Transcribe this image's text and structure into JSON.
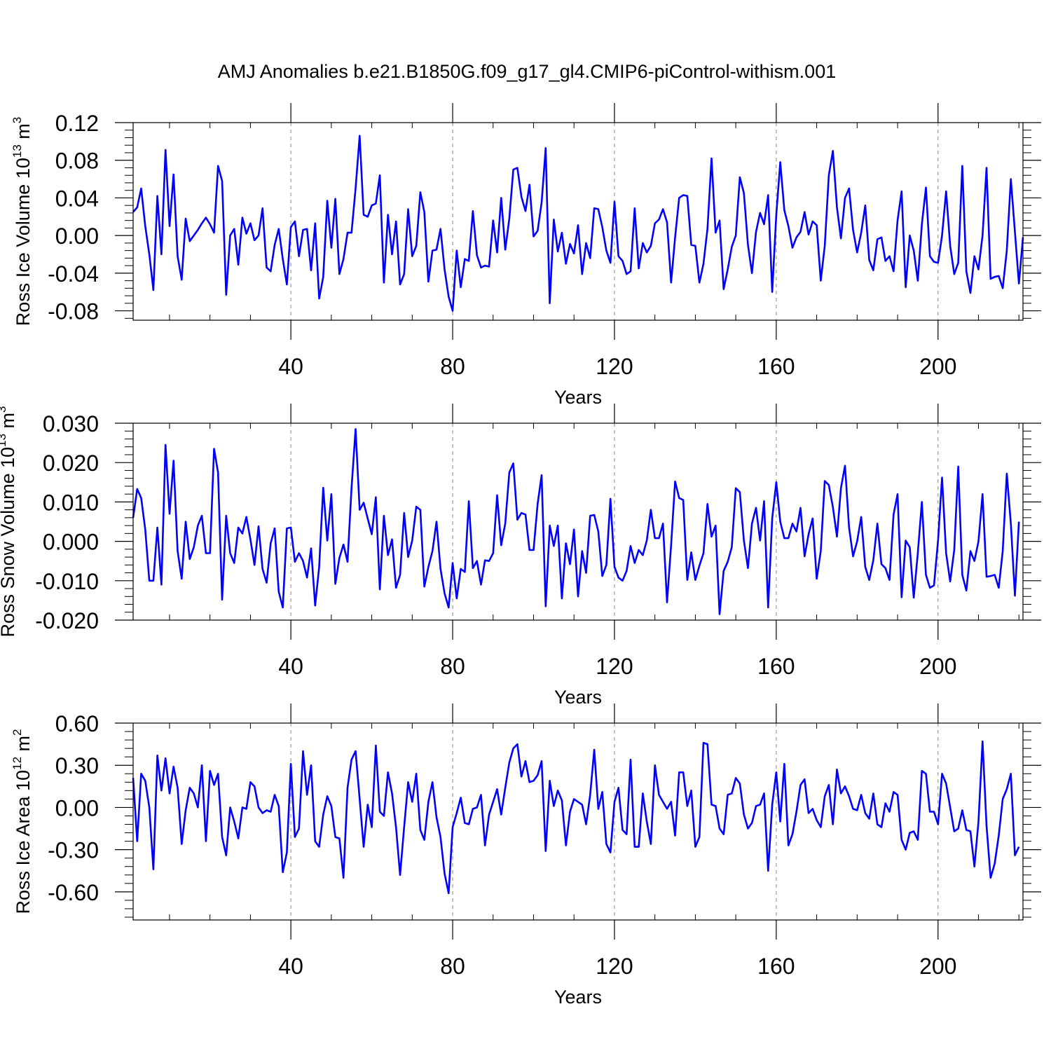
{
  "figure_title": "AMJ Anomalies b.e21.B1850G.f09_g17_gl4.CMIP6-piControl-withism.001",
  "chart_data": [
    {
      "type": "line",
      "xlabel": "Years",
      "ylabel": "Ross Ice Volume 10",
      "ylabel_exp": "13",
      "ylabel_unit": "m",
      "ylabel_unit_exp": "3",
      "xlim": [
        1,
        221
      ],
      "ylim": [
        -0.09,
        0.12
      ],
      "yticks": [
        -0.08,
        -0.04,
        0.0,
        0.04,
        0.08,
        0.12
      ],
      "ytick_labels": [
        "-0.08",
        "-0.04",
        "0.00",
        "0.04",
        "0.08",
        "0.12"
      ],
      "xticks": [
        40,
        80,
        120,
        160,
        200
      ],
      "xtick_labels": [
        "40",
        "80",
        "120",
        "160",
        "200"
      ],
      "grid": "vertical dashed at major x ticks",
      "line_color": "#0000ff",
      "x_start": 1,
      "values": [
        0.025,
        0.03,
        0.05,
        0.01,
        -0.02,
        -0.058,
        0.042,
        -0.02,
        0.091,
        0.01,
        0.065,
        -0.022,
        -0.047,
        0.018,
        -0.006,
        0.0,
        0.006,
        0.013,
        0.019,
        0.012,
        0.003,
        0.074,
        0.058,
        -0.063,
        0.0,
        0.007,
        -0.031,
        0.019,
        0.002,
        0.013,
        -0.005,
        0.0,
        0.029,
        -0.034,
        -0.038,
        -0.01,
        0.007,
        -0.025,
        -0.052,
        0.009,
        0.015,
        -0.022,
        0.006,
        0.007,
        -0.037,
        0.013,
        -0.067,
        -0.044,
        0.037,
        -0.013,
        0.039,
        -0.041,
        -0.025,
        0.003,
        0.003,
        0.05,
        0.106,
        0.022,
        0.02,
        0.032,
        0.034,
        0.064,
        -0.05,
        0.022,
        -0.02,
        0.015,
        -0.052,
        -0.041,
        0.028,
        -0.022,
        -0.011,
        0.046,
        0.025,
        -0.049,
        -0.016,
        -0.015,
        0.007,
        -0.036,
        -0.065,
        -0.08,
        -0.016,
        -0.055,
        -0.025,
        -0.027,
        0.026,
        -0.021,
        -0.034,
        -0.032,
        -0.033,
        0.016,
        -0.018,
        0.04,
        -0.015,
        0.018,
        0.07,
        0.072,
        0.041,
        0.026,
        0.054,
        -0.001,
        0.005,
        0.035,
        0.093,
        -0.072,
        0.017,
        -0.017,
        0.003,
        -0.03,
        -0.009,
        -0.019,
        0.011,
        -0.041,
        -0.008,
        -0.024,
        0.029,
        0.028,
        0.009,
        -0.016,
        -0.029,
        0.036,
        -0.022,
        -0.027,
        -0.041,
        -0.038,
        0.029,
        -0.035,
        -0.008,
        -0.018,
        -0.011,
        0.013,
        0.017,
        0.028,
        0.014,
        -0.05,
        -0.002,
        0.04,
        0.043,
        0.042,
        -0.01,
        -0.011,
        -0.05,
        -0.03,
        0.007,
        0.082,
        0.003,
        0.016,
        -0.057,
        -0.036,
        -0.012,
        0.0,
        0.062,
        0.045,
        -0.01,
        -0.04,
        0.004,
        0.024,
        0.012,
        0.043,
        -0.06,
        0.022,
        0.078,
        0.027,
        0.01,
        -0.013,
        -0.002,
        0.004,
        0.025,
        0.001,
        0.015,
        0.011,
        -0.048,
        -0.011,
        0.064,
        0.09,
        0.03,
        -0.003,
        0.04,
        0.05,
        0.006,
        -0.018,
        0.003,
        0.032,
        -0.026,
        -0.037,
        -0.004,
        -0.002,
        -0.027,
        -0.022,
        -0.038,
        0.016,
        0.047,
        -0.055,
        0.0,
        -0.016,
        -0.048,
        0.012,
        0.051,
        -0.022,
        -0.028,
        -0.029,
        0.0,
        0.047,
        -0.011,
        -0.041,
        -0.029,
        0.074,
        -0.038,
        -0.061,
        -0.022,
        -0.036,
        0.0,
        0.072,
        -0.046,
        -0.044,
        -0.043,
        -0.056,
        -0.016,
        0.06,
        0.004,
        -0.051,
        -0.002
      ]
    },
    {
      "type": "line",
      "xlabel": "Years",
      "ylabel": "Ross Snow Volume 10",
      "ylabel_exp": "13",
      "ylabel_unit": "m",
      "ylabel_unit_exp": "3",
      "xlim": [
        1,
        221
      ],
      "ylim": [
        -0.02,
        0.03
      ],
      "yticks": [
        -0.02,
        -0.01,
        0.0,
        0.01,
        0.02,
        0.03
      ],
      "ytick_labels": [
        "-0.020",
        "-0.010",
        "0.000",
        "0.010",
        "0.020",
        "0.030"
      ],
      "xticks": [
        40,
        80,
        120,
        160,
        200
      ],
      "xtick_labels": [
        "40",
        "80",
        "120",
        "160",
        "200"
      ],
      "grid": "vertical dashed at major x ticks",
      "line_color": "#0000ff",
      "x_start": 1,
      "values": [
        0.006,
        0.0133,
        0.011,
        0.003,
        -0.01,
        -0.01,
        0.0035,
        -0.011,
        0.0245,
        0.007,
        0.0205,
        -0.0025,
        -0.0095,
        0.005,
        -0.0045,
        -0.0015,
        0.004,
        0.0065,
        -0.003,
        -0.003,
        0.0235,
        0.0175,
        -0.0148,
        0.0065,
        -0.003,
        -0.0055,
        0.0035,
        0.002,
        0.0062,
        0.0005,
        -0.006,
        0.0038,
        -0.007,
        -0.0105,
        -0.0005,
        0.0033,
        -0.0128,
        -0.0168,
        0.0033,
        0.0035,
        -0.0052,
        -0.003,
        -0.005,
        -0.0092,
        -0.0018,
        -0.0163,
        -0.0065,
        0.0136,
        0.0002,
        0.012,
        -0.0108,
        -0.0042,
        -0.0008,
        -0.0052,
        0.0135,
        0.0285,
        0.008,
        0.0098,
        0.0058,
        0.0018,
        0.0112,
        -0.0122,
        0.0065,
        -0.0035,
        0.0005,
        -0.0118,
        -0.0085,
        0.0072,
        -0.004,
        0.0002,
        0.0088,
        0.008,
        -0.0115,
        -0.0065,
        -0.0025,
        0.005,
        -0.007,
        -0.0132,
        -0.0168,
        -0.0055,
        -0.0145,
        -0.007,
        -0.0078,
        0.0102,
        -0.0068,
        -0.005,
        -0.011,
        -0.0048,
        -0.005,
        -0.003,
        0.0117,
        -0.001,
        0.0045,
        0.0175,
        0.0198,
        0.0055,
        0.0072,
        0.0068,
        -0.0022,
        -0.0022,
        0.0095,
        0.0168,
        -0.0165,
        0.004,
        -0.0012,
        0.004,
        -0.0145,
        -0.0005,
        -0.0058,
        0.003,
        -0.014,
        -0.0025,
        -0.008,
        0.0065,
        0.0067,
        0.0025,
        -0.0088,
        -0.006,
        0.0108,
        -0.0065,
        -0.0092,
        -0.01,
        -0.0075,
        -0.0012,
        -0.0055,
        -0.0022,
        -0.0035,
        0.0002,
        0.008,
        0.0008,
        0.0008,
        0.0045,
        -0.0155,
        -0.001,
        0.0152,
        0.011,
        0.0105,
        -0.0098,
        -0.0028,
        -0.0098,
        -0.0062,
        -0.003,
        0.0095,
        0.0012,
        0.004,
        -0.0185,
        -0.0075,
        -0.0052,
        -0.0015,
        0.0135,
        0.0125,
        0.0002,
        -0.0068,
        0.0045,
        0.0085,
        0.0002,
        0.0102,
        -0.0168,
        0.0058,
        0.015,
        0.005,
        0.0008,
        0.0008,
        0.0045,
        0.0025,
        0.0085,
        -0.0038,
        0.0018,
        0.0058,
        -0.0095,
        -0.0025,
        0.0153,
        0.0143,
        0.0087,
        0.0012,
        0.0135,
        0.0192,
        0.0035,
        -0.0038,
        0.0,
        0.0062,
        -0.0065,
        -0.0098,
        -0.0048,
        0.0045,
        -0.0058,
        -0.0068,
        -0.0098,
        0.0068,
        0.012,
        -0.0142,
        0.0002,
        -0.0015,
        -0.0143,
        -0.003,
        0.01,
        -0.0085,
        -0.0118,
        -0.0112,
        0.0002,
        0.0162,
        -0.003,
        -0.0102,
        -0.0022,
        0.019,
        -0.0085,
        -0.0125,
        -0.0025,
        -0.005,
        0.0,
        0.012,
        -0.009,
        -0.0088,
        -0.0085,
        -0.0118,
        -0.0025,
        0.0172,
        0.0045,
        -0.0138,
        0.005
      ]
    },
    {
      "type": "line",
      "xlabel": "Years",
      "ylabel": "Ross Ice Area 10",
      "ylabel_exp": "12",
      "ylabel_unit": "m",
      "ylabel_unit_exp": "2",
      "xlim": [
        1,
        221
      ],
      "ylim": [
        -0.8,
        0.6
      ],
      "yticks": [
        -0.6,
        -0.3,
        0.0,
        0.3,
        0.6
      ],
      "ytick_labels": [
        "-0.60",
        "-0.30",
        "0.00",
        "0.30",
        "0.60"
      ],
      "xticks": [
        40,
        80,
        120,
        160,
        200
      ],
      "xtick_labels": [
        "40",
        "80",
        "120",
        "160",
        "200"
      ],
      "grid": "vertical dashed at major x ticks",
      "line_color": "#0000ff",
      "x_start": 1,
      "values": [
        0.21,
        -0.24,
        0.24,
        0.19,
        0.0,
        -0.44,
        0.37,
        0.12,
        0.35,
        0.1,
        0.29,
        0.14,
        -0.26,
        -0.02,
        0.14,
        0.1,
        0.0,
        0.3,
        -0.24,
        0.26,
        0.16,
        0.24,
        -0.21,
        -0.34,
        0.0,
        -0.1,
        -0.22,
        0.0,
        -0.01,
        0.18,
        0.15,
        0.0,
        -0.04,
        -0.02,
        -0.03,
        0.09,
        0.01,
        -0.46,
        -0.32,
        0.31,
        -0.21,
        -0.15,
        0.4,
        0.09,
        0.3,
        -0.24,
        -0.28,
        -0.05,
        0.08,
        0.01,
        -0.21,
        -0.22,
        -0.5,
        0.14,
        0.34,
        0.4,
        0.06,
        -0.28,
        0.02,
        -0.14,
        0.44,
        -0.03,
        -0.06,
        0.25,
        0.1,
        -0.14,
        -0.48,
        -0.14,
        0.18,
        0.04,
        0.24,
        -0.16,
        -0.23,
        0.04,
        0.18,
        -0.07,
        -0.21,
        -0.47,
        -0.61,
        -0.14,
        -0.04,
        0.07,
        -0.11,
        -0.12,
        -0.01,
        0.0,
        0.09,
        -0.27,
        -0.05,
        0.04,
        0.13,
        -0.05,
        0.14,
        0.32,
        0.42,
        0.45,
        0.22,
        0.33,
        0.18,
        0.19,
        0.23,
        0.33,
        -0.31,
        0.19,
        0.01,
        0.12,
        0.05,
        -0.27,
        -0.03,
        0.06,
        0.04,
        0.02,
        -0.12,
        0.09,
        0.41,
        -0.01,
        0.11,
        -0.26,
        -0.32,
        0.04,
        0.14,
        -0.16,
        -0.19,
        0.34,
        -0.28,
        -0.28,
        0.1,
        -0.1,
        -0.26,
        0.3,
        0.09,
        0.04,
        -0.01,
        0.04,
        -0.2,
        0.25,
        0.25,
        0.01,
        0.12,
        -0.28,
        -0.21,
        0.46,
        0.45,
        0.02,
        0.01,
        -0.15,
        -0.19,
        0.09,
        0.1,
        0.21,
        0.17,
        -0.05,
        -0.15,
        -0.11,
        0.01,
        0.02,
        0.1,
        -0.45,
        0.02,
        0.25,
        -0.1,
        0.31,
        -0.27,
        -0.19,
        -0.03,
        0.16,
        0.2,
        -0.04,
        -0.01,
        -0.09,
        -0.14,
        0.08,
        0.16,
        -0.12,
        0.27,
        0.1,
        0.15,
        0.08,
        -0.01,
        -0.02,
        0.09,
        -0.04,
        -0.08,
        0.1,
        -0.12,
        -0.14,
        0.03,
        -0.03,
        0.11,
        0.09,
        -0.23,
        -0.3,
        -0.18,
        -0.17,
        -0.23,
        0.26,
        0.24,
        -0.03,
        -0.03,
        -0.12,
        0.24,
        0.17,
        0.0,
        -0.17,
        -0.15,
        -0.02,
        -0.16,
        -0.17,
        -0.42,
        -0.1,
        0.47,
        -0.13,
        -0.5,
        -0.4,
        -0.2,
        0.06,
        0.13,
        0.24,
        -0.34,
        -0.28
      ]
    }
  ]
}
